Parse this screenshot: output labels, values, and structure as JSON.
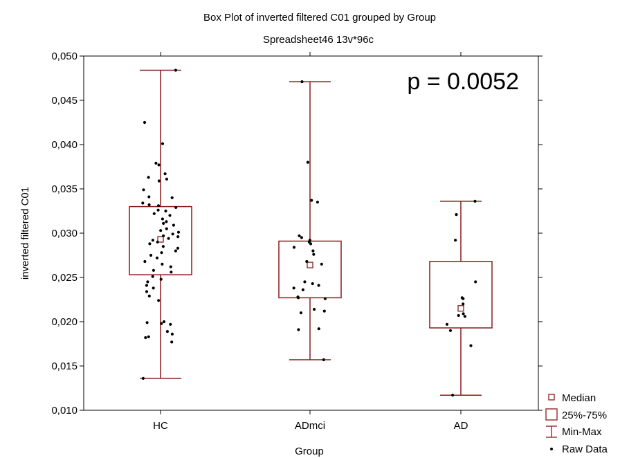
{
  "chart_data": {
    "type": "box",
    "title": "Box Plot of inverted filtered C01 grouped by  Group",
    "subtitle": "Spreadsheet46 13v*96c",
    "xlabel": "Group",
    "ylabel": "inverted filtered C01",
    "ylim": [
      0.01,
      0.05
    ],
    "yticks": [
      "0,010",
      "0,015",
      "0,020",
      "0,025",
      "0,030",
      "0,035",
      "0,040",
      "0,045",
      "0,050"
    ],
    "annotation": "p = 0.0052",
    "grid": false,
    "legend_position": "bottom-right",
    "legend": [
      "Median",
      "25%-75%",
      "Min-Max",
      "Raw Data"
    ],
    "box_color": "#8b1a1a",
    "point_color": "#000000",
    "categories": [
      "HC",
      "ADmci",
      "AD"
    ],
    "boxes": [
      {
        "category": "HC",
        "min": 0.0136,
        "q1": 0.0253,
        "median": 0.0293,
        "q3": 0.033,
        "max": 0.0484
      },
      {
        "category": "ADmci",
        "min": 0.0157,
        "q1": 0.0227,
        "median": 0.0264,
        "q3": 0.0291,
        "max": 0.0471
      },
      {
        "category": "AD",
        "min": 0.0117,
        "q1": 0.0193,
        "median": 0.0215,
        "q3": 0.0268,
        "max": 0.0336
      }
    ],
    "raw_data": [
      {
        "category": "HC",
        "values": [
          0.0484,
          0.0425,
          0.0401,
          0.0379,
          0.0377,
          0.0367,
          0.0363,
          0.0361,
          0.0359,
          0.0349,
          0.0341,
          0.034,
          0.0334,
          0.0332,
          0.0331,
          0.0329,
          0.0326,
          0.0325,
          0.0322,
          0.032,
          0.0316,
          0.0313,
          0.0311,
          0.0309,
          0.0305,
          0.0303,
          0.0301,
          0.0299,
          0.0297,
          0.0296,
          0.0294,
          0.0292,
          0.029,
          0.0288,
          0.0285,
          0.0283,
          0.028,
          0.0278,
          0.0275,
          0.0272,
          0.0268,
          0.0265,
          0.0262,
          0.0258,
          0.0256,
          0.0251,
          0.0248,
          0.0245,
          0.0241,
          0.0238,
          0.0234,
          0.0229,
          0.0224,
          0.02,
          0.0199,
          0.0198,
          0.0197,
          0.0189,
          0.0186,
          0.0183,
          0.0182,
          0.0177,
          0.0136
        ]
      },
      {
        "category": "ADmci",
        "values": [
          0.0471,
          0.038,
          0.0337,
          0.0335,
          0.0297,
          0.0295,
          0.0292,
          0.029,
          0.0288,
          0.0284,
          0.028,
          0.0276,
          0.0268,
          0.0265,
          0.0245,
          0.0243,
          0.0241,
          0.0238,
          0.0236,
          0.0228,
          0.0227,
          0.0226,
          0.0214,
          0.0212,
          0.021,
          0.0192,
          0.0191,
          0.0157
        ]
      },
      {
        "category": "AD",
        "values": [
          0.0336,
          0.0321,
          0.0292,
          0.0245,
          0.0227,
          0.0226,
          0.022,
          0.0209,
          0.0207,
          0.0206,
          0.0197,
          0.019,
          0.0173,
          0.0117
        ]
      }
    ]
  }
}
